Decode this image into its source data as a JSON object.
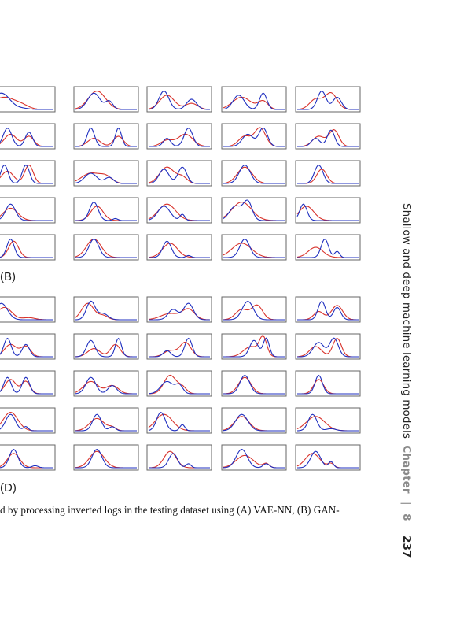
{
  "panel_labels": {
    "b": "(B)",
    "d": "(D)"
  },
  "caption": "d by processing inverted logs in the testing dataset using (A) VAE-NN, (B) GAN-",
  "running_header": {
    "title": "Shallow and deep machine learning models",
    "chapter_word": "Chapter",
    "separator": "|",
    "chapter_number": "8",
    "page_number": "237"
  },
  "colors": {
    "predicted": "#1f2fbf",
    "actual": "#d8322b",
    "frame": "#666666"
  },
  "chart_data": [
    {
      "type": "line",
      "panel": "B",
      "grid_rows": 5,
      "grid_cols": 5,
      "series_names": [],
      "plots": [
        {
          "a": [
            [
              0.15,
              0.8,
              0.14
            ],
            [
              0.5,
              0.05,
              0.1
            ]
          ],
          "b": [
            [
              0.2,
              0.6,
              0.2
            ],
            [
              0.5,
              0.1,
              0.1
            ]
          ]
        },
        {
          "a": [
            [
              0.3,
              0.8,
              0.1
            ],
            [
              0.55,
              0.4,
              0.06
            ]
          ],
          "b": [
            [
              0.35,
              0.9,
              0.14
            ]
          ]
        },
        {
          "a": [
            [
              0.25,
              0.9,
              0.08
            ],
            [
              0.7,
              0.5,
              0.08
            ]
          ],
          "b": [
            [
              0.3,
              0.7,
              0.12
            ],
            [
              0.7,
              0.3,
              0.1
            ]
          ]
        },
        {
          "a": [
            [
              0.25,
              0.7,
              0.09
            ],
            [
              0.65,
              0.8,
              0.06
            ]
          ],
          "b": [
            [
              0.3,
              0.6,
              0.15
            ],
            [
              0.65,
              0.4,
              0.08
            ]
          ]
        },
        {
          "a": [
            [
              0.4,
              0.9,
              0.07
            ],
            [
              0.65,
              0.6,
              0.07
            ]
          ],
          "b": [
            [
              0.3,
              0.5,
              0.1
            ],
            [
              0.55,
              0.8,
              0.1
            ]
          ]
        },
        {
          "a": [
            [
              0.25,
              0.9,
              0.07
            ],
            [
              0.6,
              0.7,
              0.06
            ]
          ],
          "b": [
            [
              0.3,
              0.6,
              0.1
            ],
            [
              0.6,
              0.5,
              0.08
            ]
          ]
        },
        {
          "a": [
            [
              0.25,
              0.9,
              0.06
            ],
            [
              0.7,
              0.9,
              0.05
            ]
          ],
          "b": [
            [
              0.3,
              0.4,
              0.1
            ],
            [
              0.7,
              0.5,
              0.08
            ]
          ]
        },
        {
          "a": [
            [
              0.3,
              0.4,
              0.06
            ],
            [
              0.65,
              0.9,
              0.07
            ]
          ],
          "b": [
            [
              0.3,
              0.3,
              0.1
            ],
            [
              0.6,
              0.6,
              0.12
            ]
          ]
        },
        {
          "a": [
            [
              0.4,
              0.6,
              0.09
            ],
            [
              0.65,
              0.9,
              0.07
            ]
          ],
          "b": [
            [
              0.35,
              0.5,
              0.1
            ],
            [
              0.6,
              0.9,
              0.09
            ]
          ]
        },
        {
          "a": [
            [
              0.3,
              0.4,
              0.07
            ],
            [
              0.55,
              0.8,
              0.06
            ]
          ],
          "b": [
            [
              0.35,
              0.5,
              0.1
            ],
            [
              0.6,
              0.8,
              0.08
            ]
          ]
        },
        {
          "a": [
            [
              0.2,
              0.9,
              0.06
            ],
            [
              0.55,
              0.9,
              0.06
            ]
          ],
          "b": [
            [
              0.25,
              0.6,
              0.1
            ],
            [
              0.6,
              0.9,
              0.07
            ]
          ]
        },
        {
          "a": [
            [
              0.25,
              0.5,
              0.1
            ],
            [
              0.55,
              0.3,
              0.07
            ]
          ],
          "b": [
            [
              0.25,
              0.5,
              0.15
            ],
            [
              0.5,
              0.3,
              0.1
            ]
          ]
        },
        {
          "a": [
            [
              0.25,
              0.7,
              0.08
            ],
            [
              0.55,
              0.8,
              0.07
            ]
          ],
          "b": [
            [
              0.3,
              0.8,
              0.12
            ],
            [
              0.55,
              0.3,
              0.08
            ]
          ]
        },
        {
          "a": [
            [
              0.35,
              0.9,
              0.09
            ]
          ],
          "b": [
            [
              0.35,
              0.8,
              0.12
            ]
          ]
        },
        {
          "a": [
            [
              0.35,
              0.9,
              0.07
            ]
          ],
          "b": [
            [
              0.4,
              0.7,
              0.08
            ]
          ]
        },
        {
          "a": [
            [
              0.3,
              0.8,
              0.08
            ]
          ],
          "b": [
            [
              0.3,
              0.6,
              0.12
            ]
          ]
        },
        {
          "a": [
            [
              0.3,
              0.9,
              0.07
            ],
            [
              0.65,
              0.1,
              0.04
            ]
          ],
          "b": [
            [
              0.35,
              0.7,
              0.1
            ]
          ]
        },
        {
          "a": [
            [
              0.25,
              0.7,
              0.1
            ],
            [
              0.55,
              0.3,
              0.04
            ]
          ],
          "b": [
            [
              0.3,
              0.8,
              0.14
            ]
          ]
        },
        {
          "a": [
            [
              0.2,
              0.7,
              0.1
            ],
            [
              0.4,
              0.9,
              0.07
            ]
          ],
          "b": [
            [
              0.3,
              0.9,
              0.16
            ]
          ]
        },
        {
          "a": [
            [
              0.1,
              0.8,
              0.06
            ]
          ],
          "b": [
            [
              0.15,
              0.7,
              0.12
            ]
          ]
        },
        {
          "a": [
            [
              0.3,
              0.9,
              0.06
            ]
          ],
          "b": [
            [
              0.35,
              0.8,
              0.08
            ]
          ]
        },
        {
          "a": [
            [
              0.3,
              0.9,
              0.08
            ]
          ],
          "b": [
            [
              0.3,
              0.9,
              0.12
            ]
          ]
        },
        {
          "a": [
            [
              0.3,
              0.8,
              0.07
            ],
            [
              0.65,
              0.1,
              0.04
            ]
          ],
          "b": [
            [
              0.35,
              0.7,
              0.12
            ]
          ]
        },
        {
          "a": [
            [
              0.35,
              0.9,
              0.08
            ]
          ],
          "b": [
            [
              0.3,
              0.7,
              0.16
            ]
          ]
        },
        {
          "a": [
            [
              0.45,
              0.9,
              0.06
            ],
            [
              0.65,
              0.3,
              0.04
            ]
          ],
          "b": [
            [
              0.3,
              0.5,
              0.12
            ]
          ]
        }
      ]
    },
    {
      "type": "line",
      "panel": "D",
      "grid_rows": 5,
      "grid_cols": 5,
      "series_names": [],
      "plots": [
        {
          "a": [
            [
              0.15,
              0.8,
              0.1
            ]
          ],
          "b": [
            [
              0.2,
              0.6,
              0.12
            ],
            [
              0.6,
              0.1,
              0.1
            ]
          ]
        },
        {
          "a": [
            [
              0.25,
              0.9,
              0.07
            ],
            [
              0.45,
              0.3,
              0.08
            ]
          ],
          "b": [
            [
              0.2,
              0.8,
              0.1
            ],
            [
              0.45,
              0.2,
              0.08
            ]
          ]
        },
        {
          "a": [
            [
              0.4,
              0.5,
              0.08
            ],
            [
              0.65,
              0.8,
              0.08
            ]
          ],
          "b": [
            [
              0.35,
              0.3,
              0.15
            ],
            [
              0.65,
              0.5,
              0.1
            ]
          ]
        },
        {
          "a": [
            [
              0.4,
              0.9,
              0.09
            ]
          ],
          "b": [
            [
              0.3,
              0.5,
              0.1
            ],
            [
              0.55,
              0.7,
              0.09
            ]
          ]
        },
        {
          "a": [
            [
              0.4,
              0.9,
              0.06
            ],
            [
              0.65,
              0.6,
              0.06
            ]
          ],
          "b": [
            [
              0.35,
              0.4,
              0.08
            ],
            [
              0.65,
              0.7,
              0.09
            ]
          ]
        },
        {
          "a": [
            [
              0.25,
              0.9,
              0.06
            ],
            [
              0.55,
              0.6,
              0.06
            ]
          ],
          "b": [
            [
              0.3,
              0.6,
              0.1
            ],
            [
              0.55,
              0.5,
              0.08
            ]
          ]
        },
        {
          "a": [
            [
              0.25,
              0.8,
              0.07
            ],
            [
              0.7,
              0.9,
              0.05
            ]
          ],
          "b": [
            [
              0.3,
              0.4,
              0.1
            ],
            [
              0.65,
              0.6,
              0.08
            ]
          ]
        },
        {
          "a": [
            [
              0.3,
              0.3,
              0.06
            ],
            [
              0.65,
              0.9,
              0.06
            ]
          ],
          "b": [
            [
              0.35,
              0.3,
              0.1
            ],
            [
              0.6,
              0.7,
              0.09
            ]
          ]
        },
        {
          "a": [
            [
              0.5,
              0.8,
              0.07
            ],
            [
              0.7,
              0.9,
              0.05
            ]
          ],
          "b": [
            [
              0.45,
              0.5,
              0.12
            ],
            [
              0.65,
              0.9,
              0.06
            ]
          ]
        },
        {
          "a": [
            [
              0.35,
              0.7,
              0.09
            ],
            [
              0.6,
              0.9,
              0.07
            ]
          ],
          "b": [
            [
              0.3,
              0.5,
              0.1
            ],
            [
              0.65,
              0.9,
              0.07
            ]
          ]
        },
        {
          "a": [
            [
              0.25,
              0.8,
              0.06
            ],
            [
              0.55,
              0.8,
              0.06
            ]
          ],
          "b": [
            [
              0.3,
              0.7,
              0.09
            ],
            [
              0.55,
              0.6,
              0.07
            ]
          ]
        },
        {
          "a": [
            [
              0.25,
              0.8,
              0.08
            ],
            [
              0.6,
              0.4,
              0.07
            ]
          ],
          "b": [
            [
              0.25,
              0.6,
              0.12
            ],
            [
              0.6,
              0.4,
              0.1
            ]
          ]
        },
        {
          "a": [
            [
              0.3,
              0.6,
              0.1
            ],
            [
              0.5,
              0.4,
              0.06
            ]
          ],
          "b": [
            [
              0.35,
              0.9,
              0.1
            ],
            [
              0.55,
              0.3,
              0.07
            ]
          ]
        },
        {
          "a": [
            [
              0.35,
              0.9,
              0.08
            ]
          ],
          "b": [
            [
              0.35,
              0.8,
              0.1
            ]
          ]
        },
        {
          "a": [
            [
              0.35,
              0.9,
              0.06
            ]
          ],
          "b": [
            [
              0.35,
              0.7,
              0.08
            ]
          ]
        },
        {
          "a": [
            [
              0.3,
              0.8,
              0.08
            ],
            [
              0.55,
              0.2,
              0.04
            ]
          ],
          "b": [
            [
              0.3,
              0.9,
              0.12
            ]
          ]
        },
        {
          "a": [
            [
              0.35,
              0.8,
              0.07
            ],
            [
              0.6,
              0.2,
              0.05
            ]
          ],
          "b": [
            [
              0.35,
              0.6,
              0.12
            ],
            [
              0.6,
              0.15,
              0.06
            ]
          ]
        },
        {
          "a": [
            [
              0.2,
              0.9,
              0.07
            ],
            [
              0.55,
              0.3,
              0.04
            ]
          ],
          "b": [
            [
              0.25,
              0.8,
              0.14
            ]
          ]
        },
        {
          "a": [
            [
              0.3,
              0.8,
              0.1
            ]
          ],
          "b": [
            [
              0.3,
              0.7,
              0.12
            ]
          ]
        },
        {
          "a": [
            [
              0.25,
              0.8,
              0.07
            ],
            [
              0.55,
              0.1,
              0.08
            ]
          ],
          "b": [
            [
              0.3,
              0.7,
              0.15
            ]
          ]
        },
        {
          "a": [
            [
              0.35,
              0.9,
              0.07
            ],
            [
              0.7,
              0.1,
              0.05
            ]
          ],
          "b": [
            [
              0.35,
              0.7,
              0.1
            ]
          ]
        },
        {
          "a": [
            [
              0.35,
              0.9,
              0.08
            ]
          ],
          "b": [
            [
              0.35,
              0.8,
              0.12
            ]
          ]
        },
        {
          "a": [
            [
              0.4,
              0.7,
              0.07
            ],
            [
              0.65,
              0.2,
              0.04
            ]
          ],
          "b": [
            [
              0.35,
              0.8,
              0.1
            ]
          ]
        },
        {
          "a": [
            [
              0.3,
              0.9,
              0.09
            ],
            [
              0.7,
              0.2,
              0.05
            ]
          ],
          "b": [
            [
              0.35,
              0.6,
              0.14
            ],
            [
              0.7,
              0.2,
              0.05
            ]
          ]
        },
        {
          "a": [
            [
              0.3,
              0.8,
              0.08
            ],
            [
              0.55,
              0.3,
              0.04
            ]
          ],
          "b": [
            [
              0.25,
              0.7,
              0.12
            ],
            [
              0.55,
              0.2,
              0.05
            ]
          ]
        }
      ]
    }
  ]
}
